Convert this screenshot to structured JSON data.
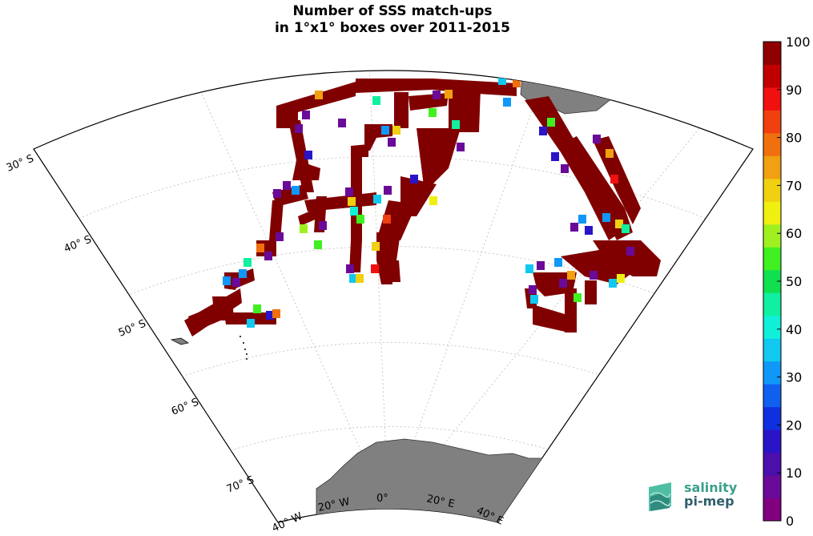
{
  "title": {
    "line1": "Number of SSS match-ups",
    "line2": "in 1°x1° boxes over 2011-2015"
  },
  "map": {
    "projection": "stereographic south-polar sector",
    "land_color": "#808080",
    "data_color_max": "#800000",
    "lat_labels": [
      {
        "lat": -30,
        "text": "30° S"
      },
      {
        "lat": -40,
        "text": "40° S"
      },
      {
        "lat": -50,
        "text": "50° S"
      },
      {
        "lat": -60,
        "text": "60° S"
      },
      {
        "lat": -70,
        "text": "70° S"
      }
    ],
    "lon_labels": [
      {
        "lon": -40,
        "text": "40° W"
      },
      {
        "lon": -20,
        "text": "20° W"
      },
      {
        "lon": 0,
        "text": "0°"
      },
      {
        "lon": 20,
        "text": "20° E"
      },
      {
        "lon": 40,
        "text": "40° E"
      }
    ]
  },
  "colorbar": {
    "ticks": [
      "100",
      "90",
      "80",
      "70",
      "60",
      "50",
      "40",
      "30",
      "20",
      "10",
      "0"
    ],
    "colors": [
      "#800080",
      "#6a0a98",
      "#4b0fae",
      "#2a14c8",
      "#1030e0",
      "#1060f0",
      "#1098f8",
      "#10c8f0",
      "#10f0d8",
      "#10f0a0",
      "#10e050",
      "#40f020",
      "#a0f020",
      "#f0f010",
      "#f0d010",
      "#f0a010",
      "#f07010",
      "#f04010",
      "#f01010",
      "#c00000",
      "#900000"
    ]
  },
  "logo": {
    "word1": "salinity",
    "word2": "pi-mep"
  }
}
